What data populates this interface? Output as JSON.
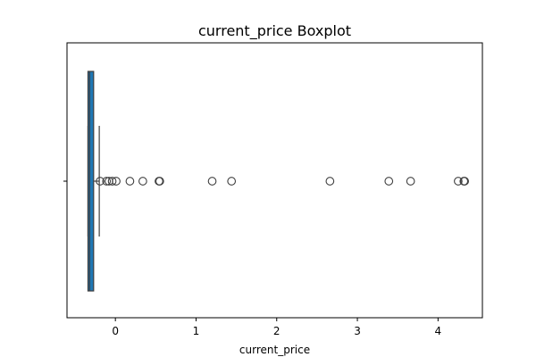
{
  "chart_data": {
    "type": "boxplot",
    "title": "current_price Boxplot",
    "xlabel": "current_price",
    "ylabel": "",
    "orientation": "horizontal",
    "xlim": [
      -0.6,
      4.55
    ],
    "xticks": [
      0,
      1,
      2,
      3,
      4
    ],
    "xtick_labels": [
      "0",
      "1",
      "2",
      "3",
      "4"
    ],
    "box": {
      "q1": -0.34,
      "median": -0.32,
      "q3": -0.27,
      "whisker_low": -0.34,
      "whisker_high": -0.2
    },
    "outliers": [
      -0.19,
      -0.11,
      -0.08,
      -0.04,
      0.01,
      0.18,
      0.34,
      0.54,
      0.55,
      1.2,
      1.44,
      2.66,
      3.39,
      3.66,
      4.25,
      4.32,
      4.33
    ],
    "colors": {
      "box_fill": "#1f77b4",
      "box_edge": "#3f3f3f",
      "whisker": "#3f3f3f",
      "outlier_edge": "#3f3f3f"
    }
  }
}
